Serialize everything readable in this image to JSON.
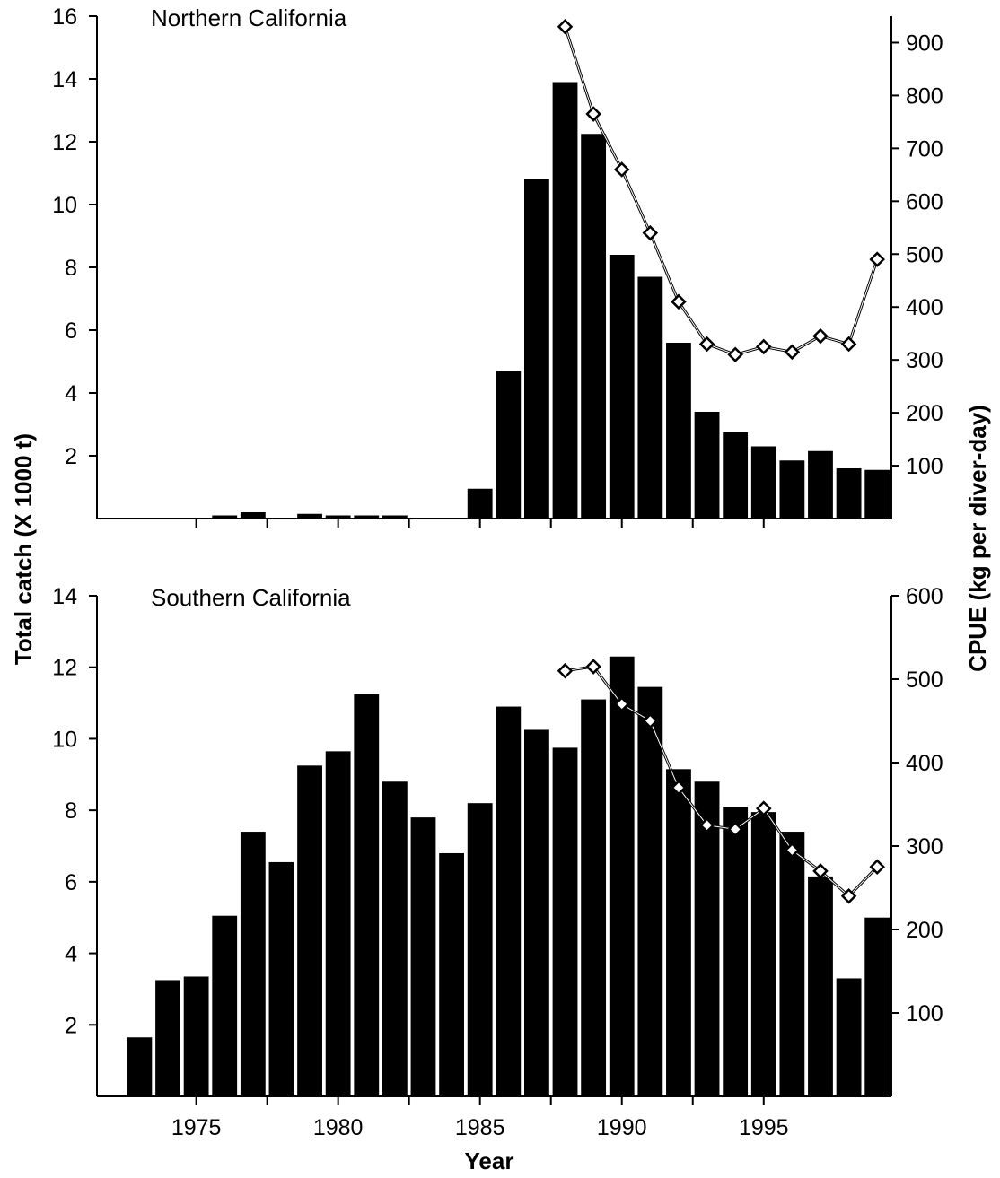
{
  "chart_data": [
    {
      "type": "bar",
      "title": "Northern California",
      "xlabel": "Year",
      "ylabel": "Total catch (X 1000 t)",
      "y2label": "CPUE (kg per diver-day)",
      "xlim": [
        1971.5,
        1999.5
      ],
      "ylim": [
        0,
        16
      ],
      "y2lim": [
        0,
        950
      ],
      "x_ticks": [
        1975,
        1980,
        1985,
        1990,
        1995
      ],
      "y_ticks": [
        2,
        4,
        6,
        8,
        10,
        12,
        14,
        16
      ],
      "y2_ticks": [
        100,
        200,
        300,
        400,
        500,
        600,
        700,
        800,
        900
      ],
      "grid": false,
      "series": [
        {
          "kind": "bar",
          "x": [
            1976,
            1977,
            1979,
            1980,
            1981,
            1982,
            1985,
            1986,
            1987,
            1988,
            1989,
            1990,
            1991,
            1992,
            1993,
            1994,
            1995,
            1996,
            1997,
            1998,
            1999
          ],
          "values": [
            0.1,
            0.2,
            0.15,
            0.1,
            0.1,
            0.1,
            0.95,
            4.7,
            10.8,
            13.9,
            12.25,
            8.4,
            7.7,
            5.6,
            3.4,
            2.75,
            2.3,
            1.85,
            2.15,
            1.6,
            1.55
          ],
          "color": "#000000",
          "axis": "left"
        },
        {
          "kind": "line",
          "marker": "diamond-open",
          "x": [
            1988,
            1989,
            1990,
            1991,
            1992,
            1993,
            1994,
            1995,
            1996,
            1997,
            1998,
            1999
          ],
          "values": [
            930,
            765,
            660,
            540,
            410,
            330,
            310,
            325,
            315,
            345,
            330,
            490
          ],
          "color": "#000000",
          "axis": "right"
        }
      ]
    },
    {
      "type": "bar",
      "title": "Southern California",
      "xlabel": "Year",
      "ylabel": "Total catch (X 1000 t)",
      "y2label": "CPUE (kg per diver-day)",
      "xlim": [
        1971.5,
        1999.5
      ],
      "ylim": [
        0,
        14
      ],
      "y2lim": [
        0,
        600
      ],
      "x_ticks": [
        1975,
        1980,
        1985,
        1990,
        1995
      ],
      "y_ticks": [
        2,
        4,
        6,
        8,
        10,
        12,
        14
      ],
      "y2_ticks": [
        100,
        200,
        300,
        400,
        500,
        600
      ],
      "grid": false,
      "series": [
        {
          "kind": "bar",
          "x": [
            1973,
            1974,
            1975,
            1976,
            1977,
            1978,
            1979,
            1980,
            1981,
            1982,
            1983,
            1984,
            1985,
            1986,
            1987,
            1988,
            1989,
            1990,
            1991,
            1992,
            1993,
            1994,
            1995,
            1996,
            1997,
            1998,
            1999
          ],
          "values": [
            1.65,
            3.25,
            3.35,
            5.05,
            7.4,
            6.55,
            9.25,
            9.65,
            11.25,
            8.8,
            7.8,
            6.8,
            8.2,
            10.9,
            10.25,
            9.75,
            11.1,
            12.3,
            11.45,
            9.15,
            8.8,
            8.1,
            7.95,
            7.4,
            6.15,
            3.3,
            5.0
          ],
          "color": "#000000",
          "axis": "left"
        },
        {
          "kind": "line",
          "marker": "diamond-open",
          "x": [
            1988,
            1989,
            1990,
            1991,
            1992,
            1993,
            1994,
            1995,
            1996,
            1997,
            1998,
            1999
          ],
          "values": [
            510,
            515,
            470,
            450,
            370,
            325,
            320,
            345,
            295,
            270,
            240,
            275
          ],
          "color": "#000000",
          "axis": "right"
        }
      ]
    }
  ]
}
